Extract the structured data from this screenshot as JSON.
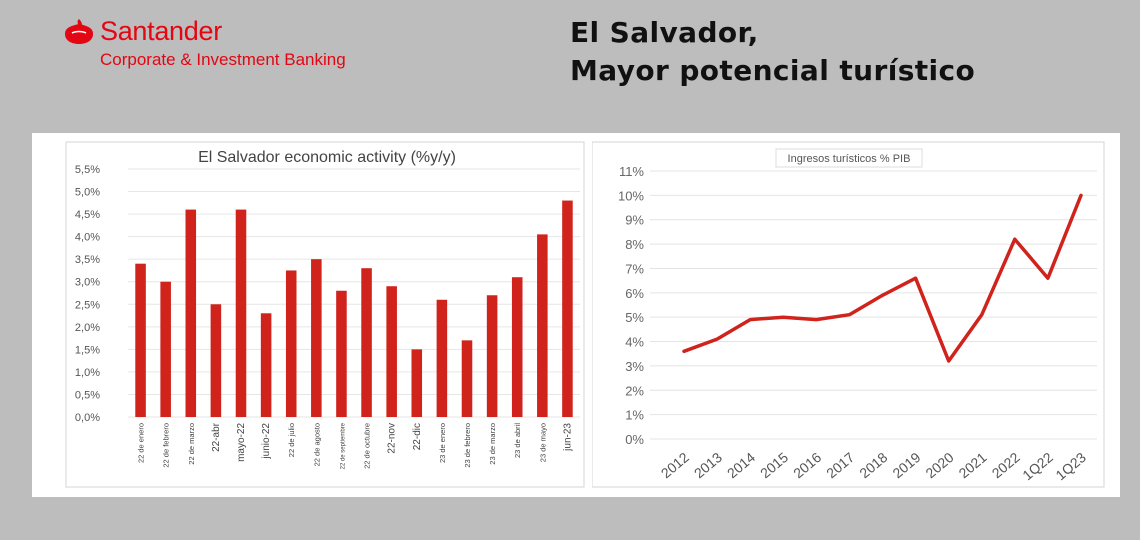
{
  "brand": {
    "name": "Santander",
    "subtitle": "Corporate & Investment Banking",
    "color": "#e30613"
  },
  "headline": {
    "line1": "El Salvador,",
    "line2": "Mayor potencial turístico"
  },
  "chart_data": [
    {
      "type": "bar",
      "title": "El Salvador economic activity (%y/y)",
      "color": "#d0231c",
      "categories": [
        "22 de enero",
        "22 de febrero",
        "22 de marzo",
        "22-abr",
        "mayo-22",
        "junio-22",
        "22 de julio",
        "22 de agosto",
        "22 de septiembre",
        "22 de octubre",
        "22-nov",
        "22-dic",
        "23 de enero",
        "23 de febrero",
        "23 de marzo",
        "23 de abril",
        "23 de mayo",
        "jun-23"
      ],
      "values": [
        3.4,
        3.0,
        4.6,
        2.5,
        4.6,
        2.3,
        3.25,
        3.5,
        2.8,
        3.3,
        2.9,
        1.5,
        2.6,
        1.7,
        2.7,
        3.1,
        4.05,
        4.8
      ],
      "yticks": [
        "0,0%",
        "0,5%",
        "1,0%",
        "1,5%",
        "2,0%",
        "2,5%",
        "3,0%",
        "3,5%",
        "4,0%",
        "4,5%",
        "5,0%",
        "5,5%"
      ],
      "ylim": [
        0,
        5.5
      ]
    },
    {
      "type": "line",
      "title": "Ingresos turísticos % PIB",
      "color": "#d0231c",
      "categories": [
        "2012",
        "2013",
        "2014",
        "2015",
        "2016",
        "2017",
        "2018",
        "2019",
        "2020",
        "2021",
        "2022",
        "1Q22",
        "1Q23"
      ],
      "values": [
        3.6,
        4.1,
        4.9,
        5.0,
        4.9,
        5.1,
        5.9,
        6.6,
        3.2,
        5.1,
        8.2,
        6.6,
        10.0
      ],
      "yticks": [
        "0%",
        "1%",
        "2%",
        "3%",
        "4%",
        "5%",
        "6%",
        "7%",
        "8%",
        "9%",
        "10%",
        "11%"
      ],
      "ylim": [
        0,
        11
      ]
    }
  ]
}
